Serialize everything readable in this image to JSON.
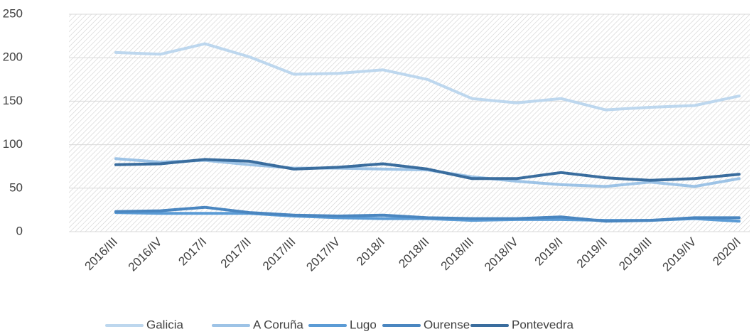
{
  "chart_data": {
    "type": "line",
    "categories": [
      "2016/III",
      "2016/IV",
      "2017/I",
      "2017/II",
      "2017/III",
      "2017/IV",
      "2018/I",
      "2018/II",
      "2018/III",
      "2018/IV",
      "2019/I",
      "2019/II",
      "2019/III",
      "2019/IV",
      "2020/I"
    ],
    "series": [
      {
        "name": "Galicia",
        "color": "#bdd7ee",
        "values": [
          206,
          204,
          216,
          201,
          181,
          182,
          186,
          175,
          153,
          148,
          153,
          140,
          143,
          145,
          156
        ]
      },
      {
        "name": "A Coruña",
        "color": "#9dc3e6",
        "values": [
          84,
          80,
          82,
          77,
          73,
          73,
          72,
          71,
          63,
          58,
          54,
          52,
          57,
          52,
          61
        ]
      },
      {
        "name": "Lugo",
        "color": "#5b9bd5",
        "values": [
          22,
          21,
          21,
          21,
          18,
          16,
          15,
          15,
          13,
          14,
          14,
          13,
          13,
          15,
          12
        ]
      },
      {
        "name": "Ourense",
        "color": "#4a86c0",
        "values": [
          23,
          24,
          28,
          22,
          19,
          18,
          19,
          16,
          15,
          15,
          17,
          12,
          13,
          16,
          16
        ]
      },
      {
        "name": "Pontevedra",
        "color": "#3a6d9e",
        "values": [
          77,
          78,
          83,
          81,
          72,
          74,
          78,
          72,
          61,
          61,
          68,
          62,
          59,
          61,
          66
        ]
      }
    ],
    "ylim": [
      0,
      250
    ],
    "yticks": [
      0,
      50,
      100,
      150,
      200,
      250
    ],
    "grid": true,
    "legend": "bottom"
  }
}
